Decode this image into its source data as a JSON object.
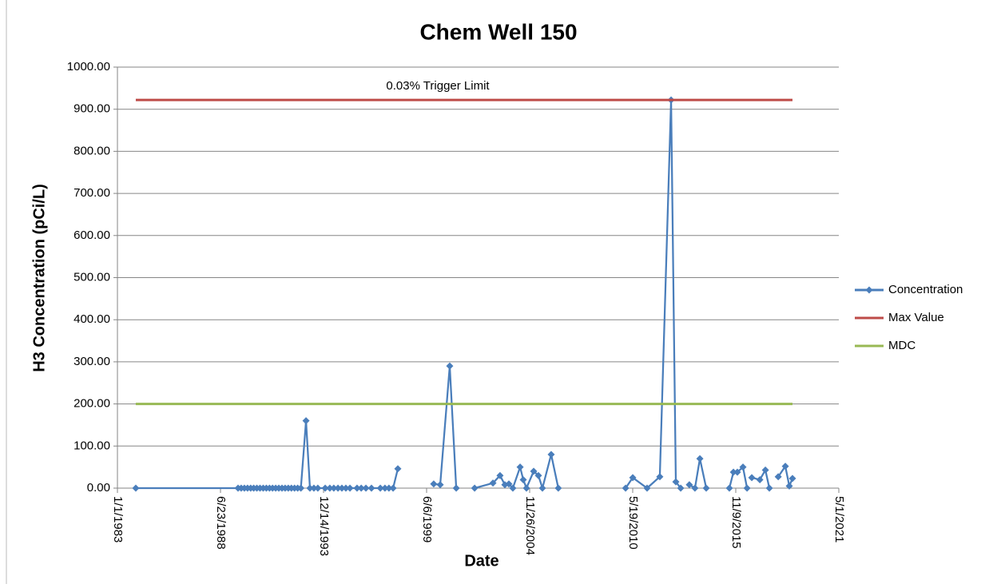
{
  "chart_data": {
    "type": "line",
    "title": "Chem Well 150",
    "x_label": "Date",
    "y_label": "H3 Concentration (pCi/L)",
    "annotations": [
      "0.03% Trigger Limit"
    ],
    "xlim": [
      "1983-01-01",
      "2021-05-01"
    ],
    "xticks": [
      {
        "value": "1983-01-01",
        "label": "1/1/1983"
      },
      {
        "value": "1988-06-23",
        "label": "6/23/1988"
      },
      {
        "value": "1993-12-14",
        "label": "12/14/1993"
      },
      {
        "value": "1999-06-06",
        "label": "6/6/1999"
      },
      {
        "value": "2004-11-26",
        "label": "11/26/2004"
      },
      {
        "value": "2010-05-19",
        "label": "5/19/2010"
      },
      {
        "value": "2015-11-09",
        "label": "11/9/2015"
      },
      {
        "value": "2021-05-01",
        "label": "5/1/2021"
      }
    ],
    "ylim": [
      0,
      1000
    ],
    "yticks": [
      {
        "value": 0,
        "label": "0.00"
      },
      {
        "value": 100,
        "label": "100.00"
      },
      {
        "value": 200,
        "label": "200.00"
      },
      {
        "value": 300,
        "label": "300.00"
      },
      {
        "value": 400,
        "label": "400.00"
      },
      {
        "value": 500,
        "label": "500.00"
      },
      {
        "value": 600,
        "label": "600.00"
      },
      {
        "value": 700,
        "label": "700.00"
      },
      {
        "value": 800,
        "label": "800.00"
      },
      {
        "value": 900,
        "label": "900.00"
      },
      {
        "value": 1000,
        "label": "1000.00"
      }
    ],
    "grid": true,
    "legend": "right",
    "series": [
      {
        "name": "Concentration",
        "color": "#4a7ebb",
        "markers": true,
        "x": [
          "1983-12-23",
          "1989-05-30",
          "1989-07-30",
          "1989-09-30",
          "1989-11-30",
          "1990-01-30",
          "1990-03-30",
          "1990-05-30",
          "1990-07-30",
          "1990-09-30",
          "1990-11-30",
          "1991-01-30",
          "1991-03-30",
          "1991-05-30",
          "1991-07-30",
          "1991-09-30",
          "1991-11-30",
          "1992-01-30",
          "1992-03-30",
          "1992-05-30",
          "1992-07-30",
          "1992-09-30",
          "1993-01-08",
          "1993-03-25",
          "1993-06-10",
          "1993-08-25",
          "1994-01-15",
          "1994-04-15",
          "1994-07-01",
          "1994-09-20",
          "1994-12-05",
          "1995-02-20",
          "1995-05-10",
          "1995-09-25",
          "1995-12-15",
          "1996-03-15",
          "1996-07-01",
          "1996-12-20",
          "1997-03-20",
          "1997-06-05",
          "1997-08-25",
          "1997-11-25",
          null,
          "1999-10-22",
          "2000-02-25",
          "2000-08-28",
          "2001-01-01",
          null,
          "2001-12-24",
          "2002-12-15",
          "2003-05-01",
          "2003-08-03",
          "2003-10-20",
          "2004-01-05",
          "2004-05-25",
          "2004-07-25",
          "2004-09-25",
          "2005-02-12",
          "2005-05-15",
          "2005-08-01",
          "2006-01-18",
          "2006-06-05",
          null,
          "2010-01-01",
          "2010-05-20",
          "2011-02-22",
          "2011-10-27",
          "2012-06-02",
          "2012-09-02",
          "2012-12-05",
          null,
          "2013-05-22",
          "2013-09-08",
          "2013-12-13",
          "2014-04-15",
          null,
          "2015-07-08",
          "2015-09-25",
          "2015-12-10",
          "2016-03-28",
          "2016-06-15",
          null,
          "2016-09-15",
          "2017-02-18",
          "2017-06-06",
          "2017-08-22",
          null,
          "2018-02-10",
          "2018-06-28",
          "2018-09-13",
          "2018-11-14"
        ],
        "values": [
          0,
          0,
          0,
          0,
          0,
          0,
          0,
          0,
          0,
          0,
          0,
          0,
          0,
          0,
          0,
          0,
          0,
          0,
          0,
          0,
          0,
          0,
          160,
          0,
          0,
          0,
          0,
          0,
          0,
          0,
          0,
          0,
          0,
          0,
          0,
          0,
          0,
          0,
          0,
          0,
          0,
          46,
          null,
          10,
          8,
          290,
          0,
          null,
          0,
          12,
          30,
          8,
          10,
          0,
          50,
          20,
          0,
          40,
          30,
          0,
          80,
          0,
          null,
          0,
          25,
          0,
          27,
          922,
          15,
          0,
          null,
          8,
          0,
          70,
          0,
          null,
          0,
          38,
          38,
          50,
          0,
          null,
          25,
          20,
          43,
          0,
          null,
          27,
          52,
          5,
          23
        ]
      },
      {
        "name": "Max Value",
        "color": "#be4b48",
        "markers": false,
        "x": [
          "1983-12-23",
          "2018-11-14"
        ],
        "values": [
          922,
          922
        ]
      },
      {
        "name": "MDC",
        "color": "#98b954",
        "markers": false,
        "x": [
          "1983-12-23",
          "2018-11-14"
        ],
        "values": [
          200,
          200
        ]
      }
    ]
  }
}
